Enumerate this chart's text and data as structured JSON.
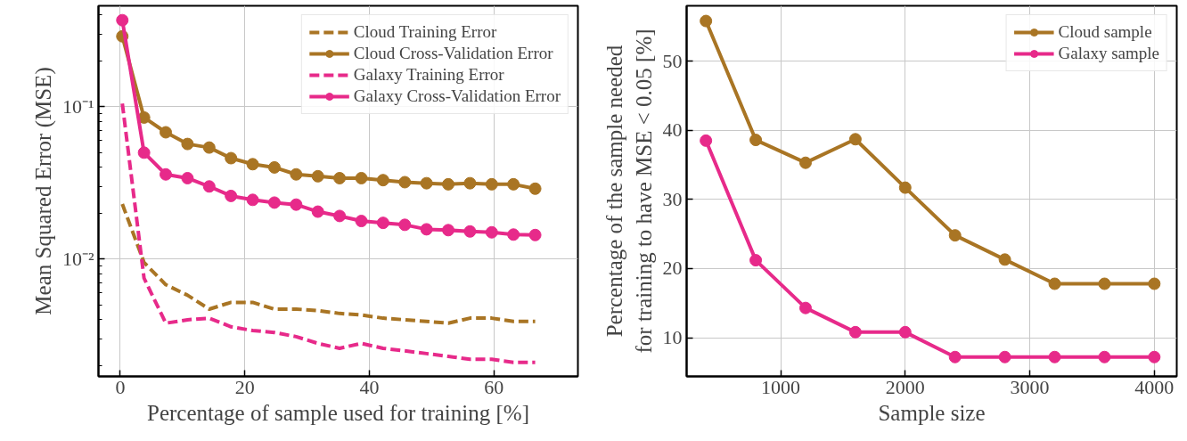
{
  "chart_data": [
    {
      "type": "line",
      "xlabel": "Percentage of sample used for training [%]",
      "ylabel": "Mean Squared Error (MSE)",
      "log": "y",
      "grid": true,
      "legend": "top right",
      "x": [
        0.33,
        3.82,
        7.31,
        10.8,
        14.29,
        17.78,
        21.27,
        24.76,
        28.25,
        31.74,
        35.23,
        38.72,
        42.21,
        45.7,
        49.19,
        52.68,
        56.17,
        59.66,
        63.15,
        66.64
      ],
      "xlim": [
        -3.5,
        73.5
      ],
      "xticks": [
        0,
        20,
        40,
        60
      ],
      "ylim": [
        0.0017,
        0.46
      ],
      "yticks": [
        {
          "value": 0.01,
          "label": "10⁻²"
        },
        {
          "value": 0.1,
          "label": "10⁻¹"
        }
      ],
      "series": [
        {
          "name": "Cloud Training Error",
          "color": "#a97524",
          "line_style": "dashed",
          "marker": "none",
          "values": [
            0.023,
            0.0095,
            0.0068,
            0.0058,
            0.0047,
            0.0052,
            0.0052,
            0.0047,
            0.0047,
            0.0046,
            0.0044,
            0.0043,
            0.0041,
            0.004,
            0.0039,
            0.0038,
            0.0041,
            0.0041,
            0.0039,
            0.0039
          ]
        },
        {
          "name": "Cloud Cross-Validation Error",
          "color": "#a97524",
          "line_style": "solid",
          "marker": "circle",
          "values": [
            0.29,
            0.085,
            0.068,
            0.057,
            0.054,
            0.046,
            0.042,
            0.04,
            0.036,
            0.035,
            0.034,
            0.034,
            0.033,
            0.032,
            0.0315,
            0.031,
            0.0315,
            0.031,
            0.031,
            0.029
          ]
        },
        {
          "name": "Galaxy Training Error",
          "color": "#e72a8a",
          "line_style": "dashed",
          "marker": "none",
          "values": [
            0.105,
            0.0075,
            0.0038,
            0.004,
            0.0041,
            0.0036,
            0.0034,
            0.0033,
            0.0031,
            0.0028,
            0.0026,
            0.0028,
            0.0026,
            0.0025,
            0.0024,
            0.0023,
            0.0022,
            0.0022,
            0.0021,
            0.0021
          ]
        },
        {
          "name": "Galaxy Cross-Validation Error",
          "color": "#e72a8a",
          "line_style": "solid",
          "marker": "circle",
          "values": [
            0.37,
            0.05,
            0.036,
            0.034,
            0.03,
            0.026,
            0.0245,
            0.0235,
            0.0228,
            0.0205,
            0.0192,
            0.0178,
            0.0173,
            0.0168,
            0.0157,
            0.0155,
            0.0152,
            0.015,
            0.0145,
            0.0144
          ]
        }
      ]
    },
    {
      "type": "line",
      "xlabel": "Sample size",
      "ylabel": "Percentage of the sample needed\nfor training to have MSE < 0.05 [%]",
      "grid": true,
      "legend": "top right",
      "marker": "circle",
      "line_style": "solid",
      "x": [
        400,
        800,
        1200,
        1600,
        2000,
        2400,
        2800,
        3200,
        3600,
        4000
      ],
      "xlim": [
        245,
        4180
      ],
      "xticks": [
        1000,
        2000,
        3000,
        4000
      ],
      "ylim": [
        4.4,
        58
      ],
      "yticks": [
        10,
        20,
        30,
        40,
        50
      ],
      "series": [
        {
          "name": "Cloud sample",
          "color": "#a97524",
          "values": [
            55.8,
            38.6,
            35.3,
            38.7,
            31.7,
            24.8,
            21.3,
            17.8,
            17.8,
            17.8
          ]
        },
        {
          "name": "Galaxy sample",
          "color": "#e72a8a",
          "values": [
            38.5,
            21.2,
            14.3,
            10.8,
            10.8,
            7.2,
            7.2,
            7.2,
            7.2,
            7.2
          ]
        }
      ]
    }
  ]
}
